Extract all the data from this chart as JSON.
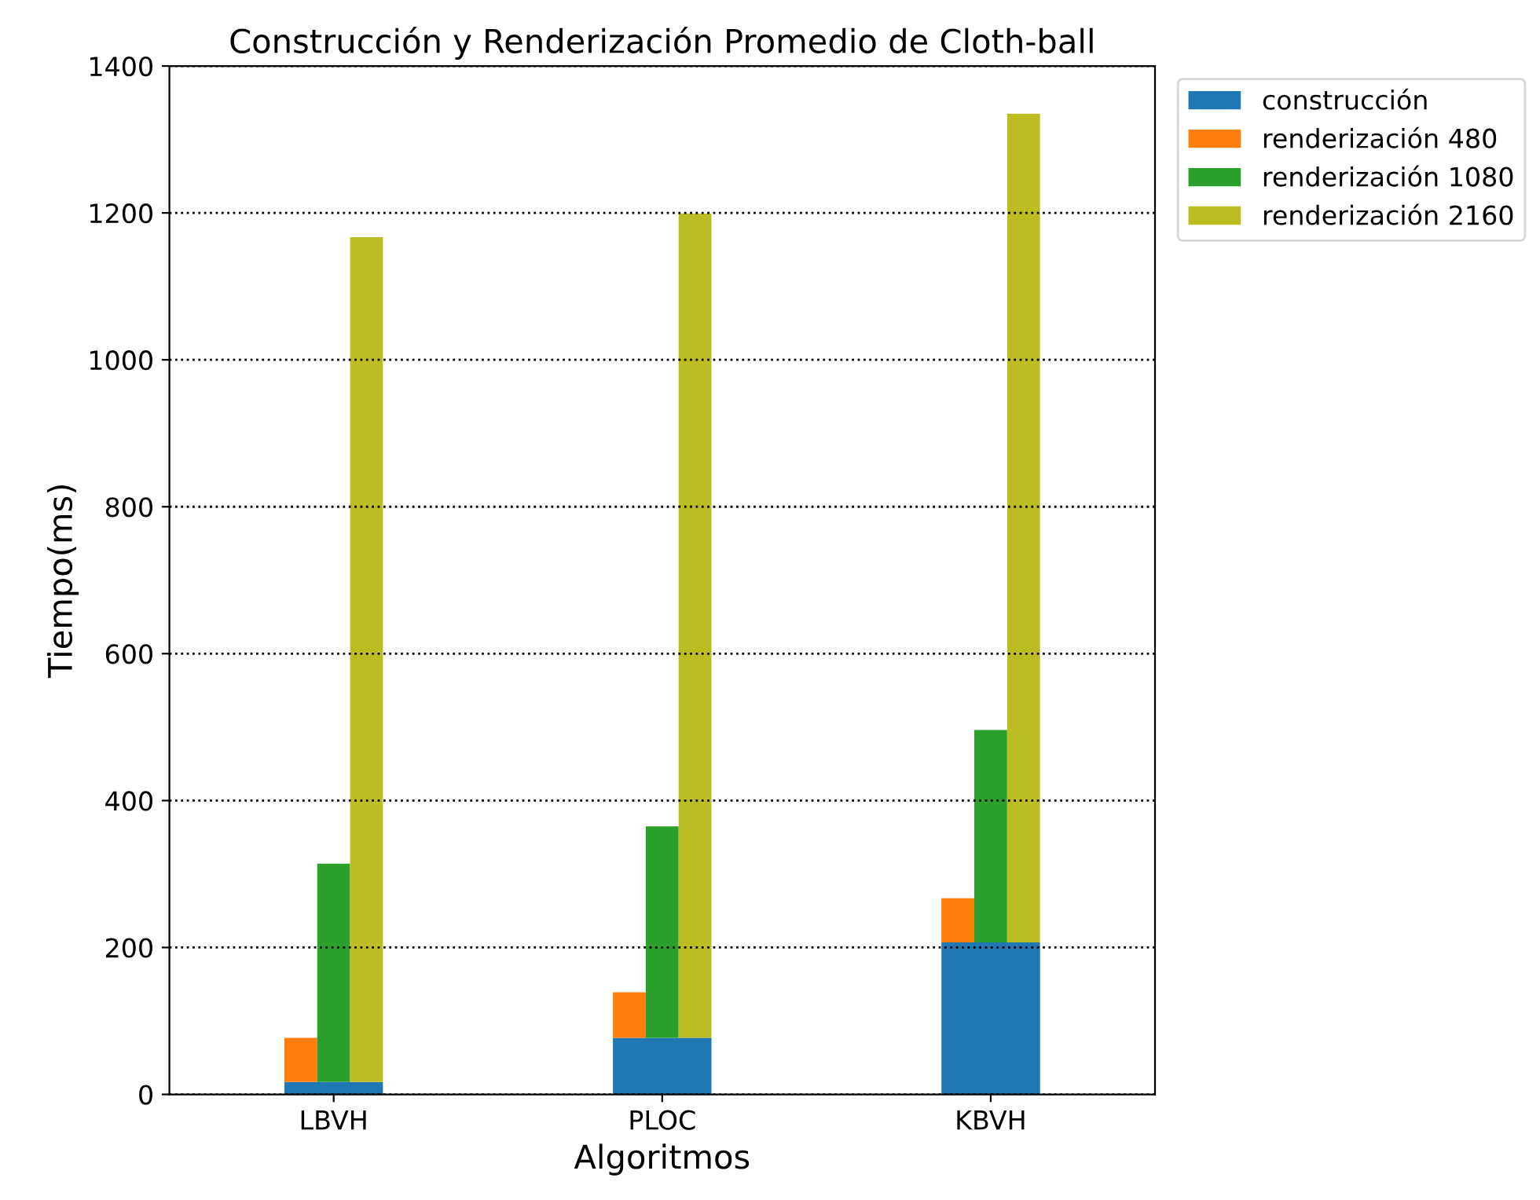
{
  "chart_data": {
    "type": "bar",
    "title": "Construcción y Renderización Promedio de Cloth-ball",
    "xlabel": "Algoritmos",
    "ylabel": "Tiempo(ms)",
    "categories": [
      "LBVH",
      "PLOC",
      "KBVH"
    ],
    "series": [
      {
        "name": "construcción",
        "color": "#1f77b4",
        "values": [
          17,
          77,
          207
        ]
      },
      {
        "name": "renderización 480",
        "color": "#ff7f0e",
        "values": [
          60,
          62,
          60
        ],
        "base": [
          17,
          77,
          207
        ]
      },
      {
        "name": "renderización 1080",
        "color": "#2ca02c",
        "values": [
          297,
          288,
          289
        ],
        "base": [
          17,
          77,
          207
        ]
      },
      {
        "name": "renderización 2160",
        "color": "#bcbd22",
        "values": [
          1150,
          1122,
          1128
        ],
        "base": [
          17,
          77,
          207
        ]
      }
    ],
    "ylim": [
      0,
      1400
    ],
    "yticks": [
      0,
      200,
      400,
      600,
      800,
      1000,
      1200,
      1400
    ],
    "grid": "y",
    "legend": "top right"
  }
}
